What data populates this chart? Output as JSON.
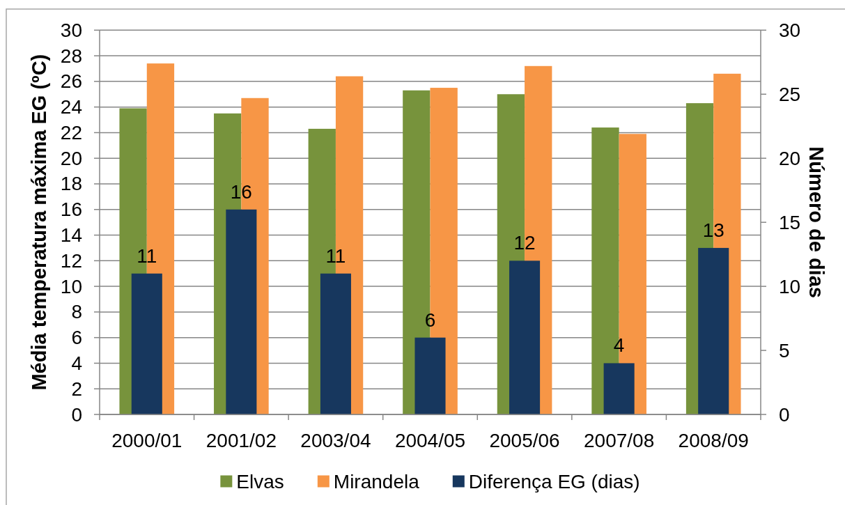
{
  "chart_data": {
    "type": "bar",
    "categories": [
      "2000/01",
      "2001/02",
      "2003/04",
      "2004/05",
      "2005/06",
      "2007/08",
      "2008/09"
    ],
    "ylabel": "Média temperatura máxima EG (ºC)",
    "y2label": "Número de dias",
    "ylim": [
      0,
      30
    ],
    "yticks": [
      0,
      2,
      4,
      6,
      8,
      10,
      12,
      14,
      16,
      18,
      20,
      22,
      24,
      26,
      28,
      30
    ],
    "y2lim": [
      0,
      30
    ],
    "y2ticks": [
      0,
      5,
      10,
      15,
      20,
      25,
      30
    ],
    "grid": "y",
    "legend": "bottom",
    "series": [
      {
        "name": "Elvas",
        "color": "#77933c",
        "values": [
          23.9,
          23.5,
          22.3,
          25.3,
          25.0,
          22.4,
          24.3
        ]
      },
      {
        "name": "Mirandela",
        "color": "#f79646",
        "values": [
          27.4,
          24.7,
          26.4,
          25.5,
          27.2,
          21.9,
          26.6
        ]
      },
      {
        "name": "Diferença EG (dias)",
        "color": "#17375e",
        "axis": "y2",
        "values": [
          11,
          16,
          11,
          6,
          12,
          4,
          13
        ],
        "value_labels": [
          "11",
          "16",
          "11",
          "6",
          "12",
          "4",
          "13"
        ]
      }
    ]
  }
}
